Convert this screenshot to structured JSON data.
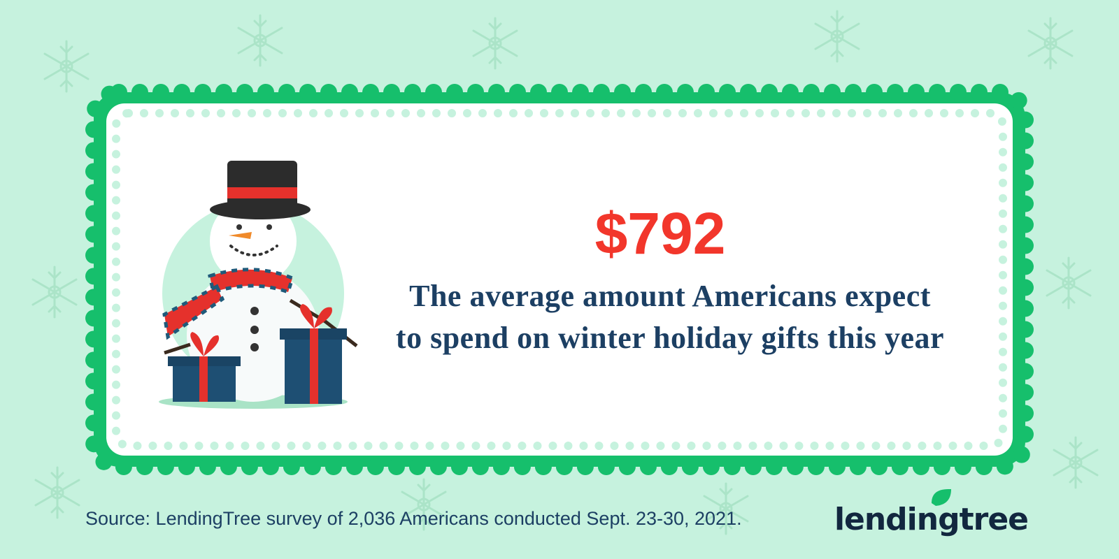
{
  "stat": {
    "value": "$792",
    "description_lines": [
      "The average amount Americans expect",
      "to spend on winter holiday gifts this year"
    ]
  },
  "source": "Source: LendingTree survey of 2,036 Americans conducted Sept. 23-30, 2021.",
  "logo": "lendingtree"
}
